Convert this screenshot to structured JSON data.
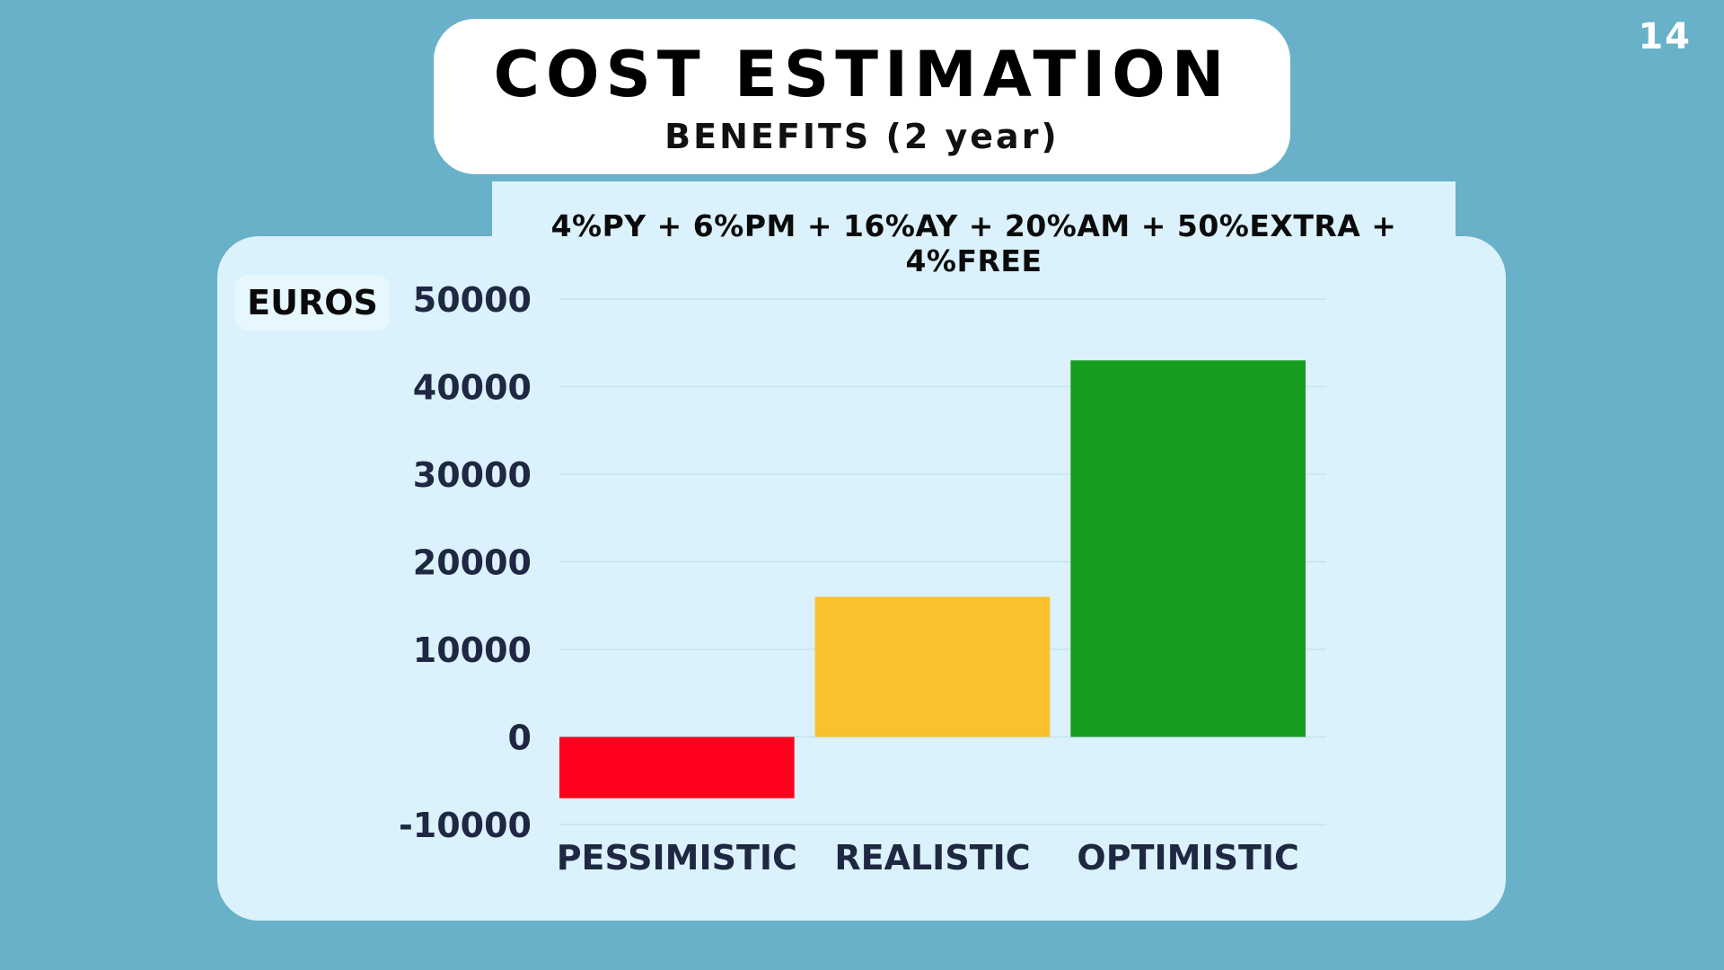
{
  "slide_number": "14",
  "title": "COST ESTIMATION",
  "subtitle": "BENEFITS (2 year)",
  "formula": "4%PY + 6%PM + 16%AY + 20%AM + 50%EXTRA + 4%FREE",
  "chart_data": {
    "type": "bar",
    "title": "",
    "xlabel": "",
    "ylabel": "EUROS",
    "categories": [
      "PESSIMISTIC",
      "REALISTIC",
      "OPTIMISTIC"
    ],
    "values": [
      -7000,
      16000,
      43000
    ],
    "ylim": [
      -10000,
      50000
    ],
    "yticks": [
      50000,
      40000,
      30000,
      20000,
      10000,
      0,
      -10000
    ],
    "grid": true,
    "legend": "none",
    "colors": [
      "#ff001e",
      "#fbc02d",
      "#189e1f"
    ]
  },
  "colors": {
    "background": "#68b1c9",
    "panel": "#dbf1fb",
    "gridline": "#c7e3ee",
    "tick_text": "#1e2842"
  }
}
